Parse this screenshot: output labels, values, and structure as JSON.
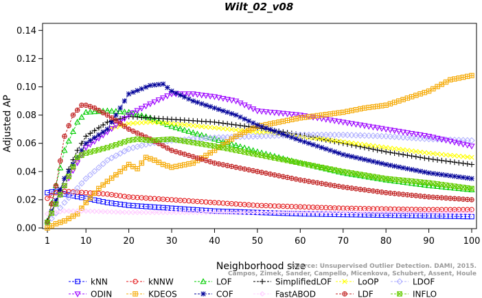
{
  "chart_data": {
    "type": "line",
    "title": "Wilt_02_v08",
    "xlabel": "Neighborhood size",
    "ylabel": "Adjusted AP",
    "xlim": [
      1,
      100
    ],
    "ylim": [
      0,
      0.145
    ],
    "x_ticks": [
      1,
      10,
      20,
      30,
      40,
      50,
      60,
      70,
      80,
      90,
      100
    ],
    "y_ticks": [
      0.0,
      0.02,
      0.04,
      0.06,
      0.08,
      0.1,
      0.12,
      0.14
    ],
    "y_tick_labels": [
      "0.00",
      "0.02",
      "0.04",
      "0.06",
      "0.08",
      "0.10",
      "0.12",
      "0.14"
    ],
    "grid": false,
    "legend_position": "bottom",
    "watermark": {
      "line1": "Source: Unsupervised Outlier Detection. DAMI, 2015.",
      "line2": "Campos, Zimek, Sander, Campello, Micenkova, Schubert, Assent, Houle"
    },
    "series": [
      {
        "name": "kNN",
        "color": "#0000ff",
        "marker": "square",
        "points": [
          [
            1,
            0.025
          ],
          [
            3,
            0.026
          ],
          [
            5,
            0.024
          ],
          [
            10,
            0.021
          ],
          [
            15,
            0.018
          ],
          [
            20,
            0.016
          ],
          [
            30,
            0.014
          ],
          [
            40,
            0.012
          ],
          [
            50,
            0.011
          ],
          [
            60,
            0.01
          ],
          [
            70,
            0.0095
          ],
          [
            80,
            0.009
          ],
          [
            90,
            0.0085
          ],
          [
            100,
            0.008
          ]
        ]
      },
      {
        "name": "kNNW",
        "color": "#e41a1c",
        "marker": "circle",
        "points": [
          [
            1,
            0.021
          ],
          [
            3,
            0.025
          ],
          [
            5,
            0.026
          ],
          [
            10,
            0.025
          ],
          [
            15,
            0.024
          ],
          [
            20,
            0.022
          ],
          [
            30,
            0.02
          ],
          [
            40,
            0.018
          ],
          [
            50,
            0.016
          ],
          [
            60,
            0.015
          ],
          [
            70,
            0.014
          ],
          [
            80,
            0.0135
          ],
          [
            90,
            0.013
          ],
          [
            100,
            0.013
          ]
        ]
      },
      {
        "name": "LOF",
        "color": "#00cc00",
        "marker": "triangle-up",
        "points": [
          [
            1,
            0.005
          ],
          [
            3,
            0.03
          ],
          [
            5,
            0.055
          ],
          [
            8,
            0.075
          ],
          [
            10,
            0.082
          ],
          [
            15,
            0.083
          ],
          [
            20,
            0.082
          ],
          [
            25,
            0.078
          ],
          [
            30,
            0.072
          ],
          [
            40,
            0.063
          ],
          [
            50,
            0.054
          ],
          [
            60,
            0.046
          ],
          [
            70,
            0.039
          ],
          [
            80,
            0.034
          ],
          [
            90,
            0.03
          ],
          [
            100,
            0.027
          ]
        ]
      },
      {
        "name": "SimplifiedLOF",
        "color": "#000000",
        "marker": "plus",
        "points": [
          [
            1,
            0.005
          ],
          [
            3,
            0.018
          ],
          [
            5,
            0.035
          ],
          [
            8,
            0.055
          ],
          [
            10,
            0.065
          ],
          [
            15,
            0.075
          ],
          [
            20,
            0.079
          ],
          [
            25,
            0.078
          ],
          [
            30,
            0.077
          ],
          [
            40,
            0.075
          ],
          [
            50,
            0.071
          ],
          [
            60,
            0.066
          ],
          [
            70,
            0.06
          ],
          [
            80,
            0.054
          ],
          [
            90,
            0.049
          ],
          [
            100,
            0.045
          ]
        ]
      },
      {
        "name": "LoOP",
        "color": "#ffff00",
        "marker": "x",
        "points": [
          [
            1,
            0.004
          ],
          [
            5,
            0.03
          ],
          [
            10,
            0.06
          ],
          [
            15,
            0.07
          ],
          [
            20,
            0.074
          ],
          [
            25,
            0.075
          ],
          [
            30,
            0.074
          ],
          [
            40,
            0.071
          ],
          [
            50,
            0.068
          ],
          [
            60,
            0.065
          ],
          [
            70,
            0.061
          ],
          [
            80,
            0.057
          ],
          [
            90,
            0.053
          ],
          [
            100,
            0.05
          ]
        ]
      },
      {
        "name": "LDOF",
        "color": "#b0b0ff",
        "marker": "diamond",
        "points": [
          [
            1,
            0.003
          ],
          [
            5,
            0.018
          ],
          [
            10,
            0.035
          ],
          [
            15,
            0.048
          ],
          [
            20,
            0.056
          ],
          [
            25,
            0.06
          ],
          [
            30,
            0.062
          ],
          [
            40,
            0.064
          ],
          [
            50,
            0.065
          ],
          [
            60,
            0.066
          ],
          [
            70,
            0.066
          ],
          [
            80,
            0.065
          ],
          [
            90,
            0.063
          ],
          [
            100,
            0.062
          ]
        ]
      },
      {
        "name": "ODIN",
        "color": "#9b00ff",
        "marker": "triangle-down",
        "points": [
          [
            1,
            0.004
          ],
          [
            5,
            0.03
          ],
          [
            10,
            0.057
          ],
          [
            15,
            0.068
          ],
          [
            20,
            0.08
          ],
          [
            25,
            0.088
          ],
          [
            30,
            0.095
          ],
          [
            35,
            0.095
          ],
          [
            40,
            0.093
          ],
          [
            45,
            0.09
          ],
          [
            50,
            0.083
          ],
          [
            60,
            0.08
          ],
          [
            70,
            0.075
          ],
          [
            80,
            0.07
          ],
          [
            90,
            0.065
          ],
          [
            100,
            0.058
          ]
        ]
      },
      {
        "name": "KDEOS",
        "color": "#f5a800",
        "marker": "square-cross",
        "points": [
          [
            1,
            0.0
          ],
          [
            3,
            0.003
          ],
          [
            5,
            0.005
          ],
          [
            8,
            0.01
          ],
          [
            10,
            0.018
          ],
          [
            13,
            0.028
          ],
          [
            15,
            0.033
          ],
          [
            18,
            0.04
          ],
          [
            20,
            0.045
          ],
          [
            22,
            0.042
          ],
          [
            24,
            0.05
          ],
          [
            26,
            0.048
          ],
          [
            28,
            0.045
          ],
          [
            30,
            0.043
          ],
          [
            35,
            0.046
          ],
          [
            40,
            0.055
          ],
          [
            45,
            0.065
          ],
          [
            50,
            0.072
          ],
          [
            55,
            0.075
          ],
          [
            60,
            0.078
          ],
          [
            65,
            0.08
          ],
          [
            70,
            0.082
          ],
          [
            75,
            0.085
          ],
          [
            80,
            0.087
          ],
          [
            85,
            0.092
          ],
          [
            90,
            0.097
          ],
          [
            95,
            0.105
          ],
          [
            100,
            0.108
          ]
        ]
      },
      {
        "name": "COF",
        "color": "#000099",
        "marker": "asterisk",
        "points": [
          [
            1,
            0.004
          ],
          [
            5,
            0.035
          ],
          [
            10,
            0.06
          ],
          [
            15,
            0.07
          ],
          [
            18,
            0.085
          ],
          [
            20,
            0.095
          ],
          [
            25,
            0.101
          ],
          [
            28,
            0.102
          ],
          [
            30,
            0.097
          ],
          [
            35,
            0.09
          ],
          [
            40,
            0.085
          ],
          [
            45,
            0.08
          ],
          [
            50,
            0.073
          ],
          [
            60,
            0.062
          ],
          [
            70,
            0.052
          ],
          [
            80,
            0.045
          ],
          [
            90,
            0.039
          ],
          [
            100,
            0.035
          ]
        ]
      },
      {
        "name": "FastABOD",
        "color": "#ffccff",
        "marker": "diamond-small",
        "points": [
          [
            1,
            0.01
          ],
          [
            5,
            0.012
          ],
          [
            10,
            0.012
          ],
          [
            20,
            0.011
          ],
          [
            30,
            0.011
          ],
          [
            40,
            0.011
          ],
          [
            50,
            0.011
          ],
          [
            60,
            0.011
          ],
          [
            70,
            0.011
          ],
          [
            80,
            0.011
          ],
          [
            90,
            0.011
          ],
          [
            100,
            0.011
          ]
        ]
      },
      {
        "name": "LDF",
        "color": "#c02020",
        "marker": "circle-plus",
        "points": [
          [
            1,
            0.004
          ],
          [
            3,
            0.03
          ],
          [
            5,
            0.065
          ],
          [
            7,
            0.08
          ],
          [
            9,
            0.087
          ],
          [
            10,
            0.087
          ],
          [
            12,
            0.085
          ],
          [
            15,
            0.08
          ],
          [
            20,
            0.07
          ],
          [
            25,
            0.063
          ],
          [
            30,
            0.055
          ],
          [
            40,
            0.046
          ],
          [
            50,
            0.04
          ],
          [
            60,
            0.034
          ],
          [
            70,
            0.029
          ],
          [
            80,
            0.025
          ],
          [
            90,
            0.022
          ],
          [
            100,
            0.02
          ]
        ]
      },
      {
        "name": "INFLO",
        "color": "#66cc00",
        "marker": "square-x",
        "points": [
          [
            1,
            0.004
          ],
          [
            5,
            0.03
          ],
          [
            8,
            0.05
          ],
          [
            10,
            0.053
          ],
          [
            15,
            0.057
          ],
          [
            20,
            0.062
          ],
          [
            22,
            0.063
          ],
          [
            25,
            0.062
          ],
          [
            30,
            0.063
          ],
          [
            40,
            0.058
          ],
          [
            50,
            0.052
          ],
          [
            60,
            0.046
          ],
          [
            70,
            0.04
          ],
          [
            80,
            0.035
          ],
          [
            90,
            0.032
          ],
          [
            100,
            0.028
          ]
        ]
      }
    ]
  }
}
